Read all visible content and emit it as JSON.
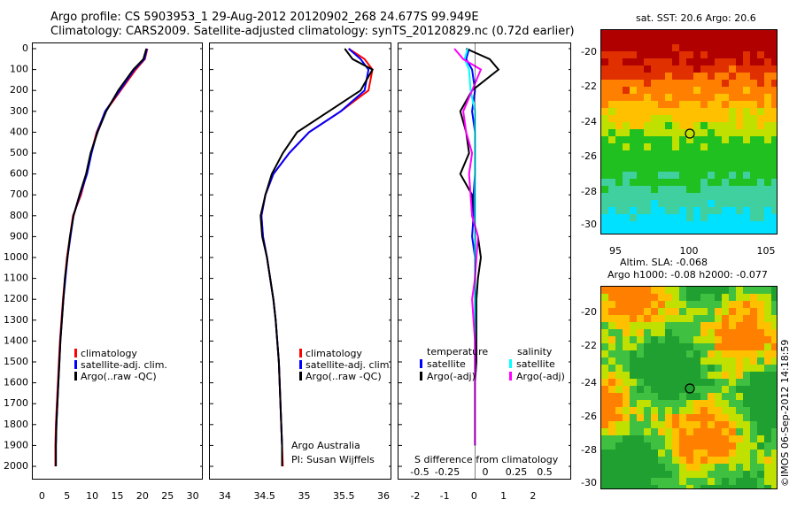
{
  "title_line1": "Argo profile: CS 5903953_1 29-Aug-2012 20120902_268 24.677S 99.949E",
  "title_line2": "Climatology: CARS2009. Satellite-adjusted climatology: synTS_20120829.nc (0.72d earlier)",
  "depth_ticks": [
    0,
    100,
    200,
    300,
    400,
    500,
    600,
    700,
    800,
    900,
    1000,
    1100,
    1200,
    1300,
    1400,
    1500,
    1600,
    1700,
    1800,
    1900,
    2000
  ],
  "panel1_xticks": [
    0,
    5,
    10,
    15,
    20,
    25,
    30
  ],
  "panel2_xticks": [
    "34",
    "34.5",
    "35",
    "35.5",
    "36"
  ],
  "panel3_xticks": [
    "-2",
    "-1",
    "0",
    "1",
    "2"
  ],
  "panel3_xticks_minor": [
    "-0.5",
    "-0.25",
    "0",
    "0.25",
    "0.5"
  ],
  "legend1": {
    "clim": "climatology",
    "sat": "satellite-adj. clim.",
    "argo": "Argo(..raw -QC)"
  },
  "legend2": {
    "clim": "climatology",
    "sat": "satellite-adj. clim.",
    "argo": "Argo(..raw -QC)"
  },
  "legend3": {
    "temp_head": "temperature",
    "sal_head": "salinity",
    "sat": "satellite",
    "argo": "Argo(-adj)",
    "sat2": "satellite",
    "argo2": "Argo(-adj)"
  },
  "panel2_note1": "Argo Australia",
  "panel2_note2": "PI: Susan Wijffels",
  "panel3_xlabel": "S difference from climatology",
  "map1_title": "sat. SST: 20.6 Argo: 20.6",
  "map1_yticks": [
    "-20",
    "-22",
    "-24",
    "-26",
    "-28",
    "-30"
  ],
  "map1_xticks": [
    "95",
    "100",
    "105"
  ],
  "map2_title1": "Altim. SLA: -0.068",
  "map2_title2": "Argo h1000: -0.08 h2000: -0.077",
  "map2_yticks": [
    "-20",
    "-22",
    "-24",
    "-26",
    "-28",
    "-30"
  ],
  "copyright": "©IMOS 06-Sep-2012 14:18:59",
  "colors": {
    "clim": "#ff0000",
    "sat": "#0000ff",
    "argo": "#000000",
    "sal_sat": "#00ffff",
    "sal_argo": "#ff00ff"
  },
  "chart_data": [
    {
      "type": "line",
      "xlabel": "",
      "ylabel": "",
      "xlim": [
        -2,
        32
      ],
      "ylim": [
        2050,
        -20
      ],
      "series": [
        {
          "name": "climatology",
          "x": [
            20.8,
            20.3,
            18.5,
            15.5,
            12.5,
            10.7,
            9.6,
            8.7,
            7.6,
            6.0,
            5.4,
            4.8,
            4.4,
            4.0,
            3.7,
            3.4,
            3.2,
            3.0,
            2.8,
            2.6,
            2.5,
            2.5
          ],
          "y": [
            0,
            50,
            100,
            200,
            300,
            400,
            500,
            600,
            700,
            800,
            900,
            1000,
            1100,
            1200,
            1300,
            1400,
            1500,
            1600,
            1700,
            1800,
            1900,
            2000
          ]
        },
        {
          "name": "satellite-adj. clim.",
          "x": [
            20.7,
            20.2,
            18.2,
            15.3,
            12.4,
            10.8,
            9.7,
            8.8,
            7.4,
            6.1,
            5.5,
            4.9,
            4.5,
            4.1,
            3.8,
            3.5,
            3.3,
            3.1,
            2.9,
            2.7,
            2.6,
            2.6
          ],
          "y": [
            0,
            50,
            100,
            200,
            300,
            400,
            500,
            600,
            700,
            800,
            900,
            1000,
            1100,
            1200,
            1300,
            1400,
            1500,
            1600,
            1700,
            1800,
            1900,
            2000
          ]
        },
        {
          "name": "Argo(..raw -QC)",
          "x": [
            20.6,
            20.0,
            18.0,
            15.0,
            12.6,
            10.9,
            9.5,
            8.6,
            7.3,
            6.1,
            5.4,
            4.9,
            4.4,
            4.1,
            3.8,
            3.5,
            3.3,
            3.1,
            2.9,
            2.7,
            2.6,
            2.6
          ],
          "y": [
            0,
            50,
            100,
            200,
            300,
            400,
            500,
            600,
            700,
            800,
            900,
            1000,
            1100,
            1200,
            1300,
            1400,
            1500,
            1600,
            1700,
            1800,
            1900,
            2000
          ]
        }
      ]
    },
    {
      "type": "line",
      "xlabel": "",
      "ylabel": "",
      "xlim": [
        33.8,
        36.1
      ],
      "ylim": [
        2050,
        -20
      ],
      "series": [
        {
          "name": "climatology",
          "x": [
            35.55,
            35.75,
            35.85,
            35.8,
            35.45,
            35.05,
            34.8,
            34.6,
            34.5,
            34.45,
            34.47,
            34.52,
            34.56,
            34.6,
            34.63,
            34.65,
            34.67,
            34.68,
            34.69,
            34.7,
            34.71,
            34.72
          ],
          "y": [
            0,
            50,
            100,
            200,
            300,
            400,
            500,
            600,
            700,
            800,
            900,
            1000,
            1100,
            1200,
            1300,
            1400,
            1500,
            1600,
            1700,
            1800,
            1900,
            2000
          ]
        },
        {
          "name": "satellite-adj. clim.",
          "x": [
            35.55,
            35.7,
            35.8,
            35.75,
            35.45,
            35.05,
            34.8,
            34.6,
            34.5,
            34.45,
            34.47,
            34.52,
            34.56,
            34.6,
            34.63,
            34.65,
            34.67,
            34.68,
            34.69,
            34.7,
            34.71,
            34.71
          ],
          "y": [
            0,
            50,
            100,
            200,
            300,
            400,
            500,
            600,
            700,
            800,
            900,
            1000,
            1100,
            1200,
            1300,
            1400,
            1500,
            1600,
            1700,
            1800,
            1900,
            2000
          ]
        },
        {
          "name": "Argo(..raw -QC)",
          "x": [
            35.5,
            35.6,
            35.85,
            35.7,
            35.3,
            34.9,
            34.72,
            34.58,
            34.5,
            34.44,
            34.46,
            34.52,
            34.56,
            34.6,
            34.63,
            34.65,
            34.67,
            34.68,
            34.69,
            34.7,
            34.71,
            34.71
          ],
          "y": [
            0,
            50,
            100,
            200,
            300,
            400,
            500,
            600,
            700,
            800,
            900,
            1000,
            1100,
            1200,
            1300,
            1400,
            1500,
            1600,
            1700,
            1800,
            1900,
            2000
          ]
        }
      ]
    },
    {
      "type": "line",
      "xlabel": "S difference from climatology",
      "ylabel": "",
      "xlim": [
        -2.6,
        3.3
      ],
      "ylim": [
        2050,
        -20
      ],
      "series": [
        {
          "name": "temperature satellite",
          "x": [
            -0.2,
            -0.3,
            -0.1,
            0.0,
            -0.1,
            0.0,
            0.0,
            0.0,
            -0.05,
            -0.05,
            -0.1,
            0.0,
            0.0,
            0.0,
            0.0,
            0.0,
            0.0,
            0.0,
            0.0,
            0.0,
            0.0
          ],
          "y": [
            0,
            50,
            100,
            200,
            300,
            400,
            500,
            600,
            700,
            800,
            900,
            1000,
            1100,
            1200,
            1300,
            1400,
            1500,
            1600,
            1700,
            1800,
            1900
          ]
        },
        {
          "name": "temperature Argo(-adj)",
          "x": [
            -0.3,
            0.5,
            0.8,
            -0.1,
            -0.5,
            -0.3,
            -0.2,
            -0.5,
            -0.1,
            -0.1,
            0.1,
            0.2,
            0.1,
            0.05,
            0.05,
            0.05,
            0.05,
            0.0,
            0.0,
            0.0,
            0.0
          ],
          "y": [
            0,
            50,
            100,
            200,
            300,
            400,
            500,
            600,
            700,
            800,
            900,
            1000,
            1100,
            1200,
            1300,
            1400,
            1500,
            1600,
            1700,
            1800,
            1900
          ]
        },
        {
          "name": "salinity satellite",
          "x": [
            -0.25,
            -0.35,
            -0.2,
            -0.15,
            0.0,
            0.0,
            0.0,
            0.0,
            0.0,
            0.0,
            0.0,
            0.0,
            0.0,
            0.0,
            0.0,
            0.0,
            0.0,
            0.0,
            0.0,
            0.0,
            0.0
          ],
          "y": [
            0,
            50,
            100,
            200,
            300,
            400,
            500,
            600,
            700,
            800,
            900,
            1000,
            1100,
            1200,
            1300,
            1400,
            1500,
            1600,
            1700,
            1800,
            1900
          ]
        },
        {
          "name": "salinity Argo(-adj)",
          "x": [
            -0.7,
            -0.4,
            0.2,
            -0.1,
            -0.4,
            -0.3,
            -0.1,
            -0.2,
            -0.15,
            -0.1,
            0.1,
            0.05,
            0.0,
            -0.1,
            -0.05,
            0.0,
            0.0,
            0.0,
            0.0,
            0.0,
            0.0
          ],
          "y": [
            0,
            50,
            100,
            200,
            300,
            400,
            500,
            600,
            700,
            800,
            900,
            1000,
            1100,
            1200,
            1300,
            1400,
            1500,
            1600,
            1700,
            1800,
            1900
          ]
        }
      ]
    }
  ]
}
